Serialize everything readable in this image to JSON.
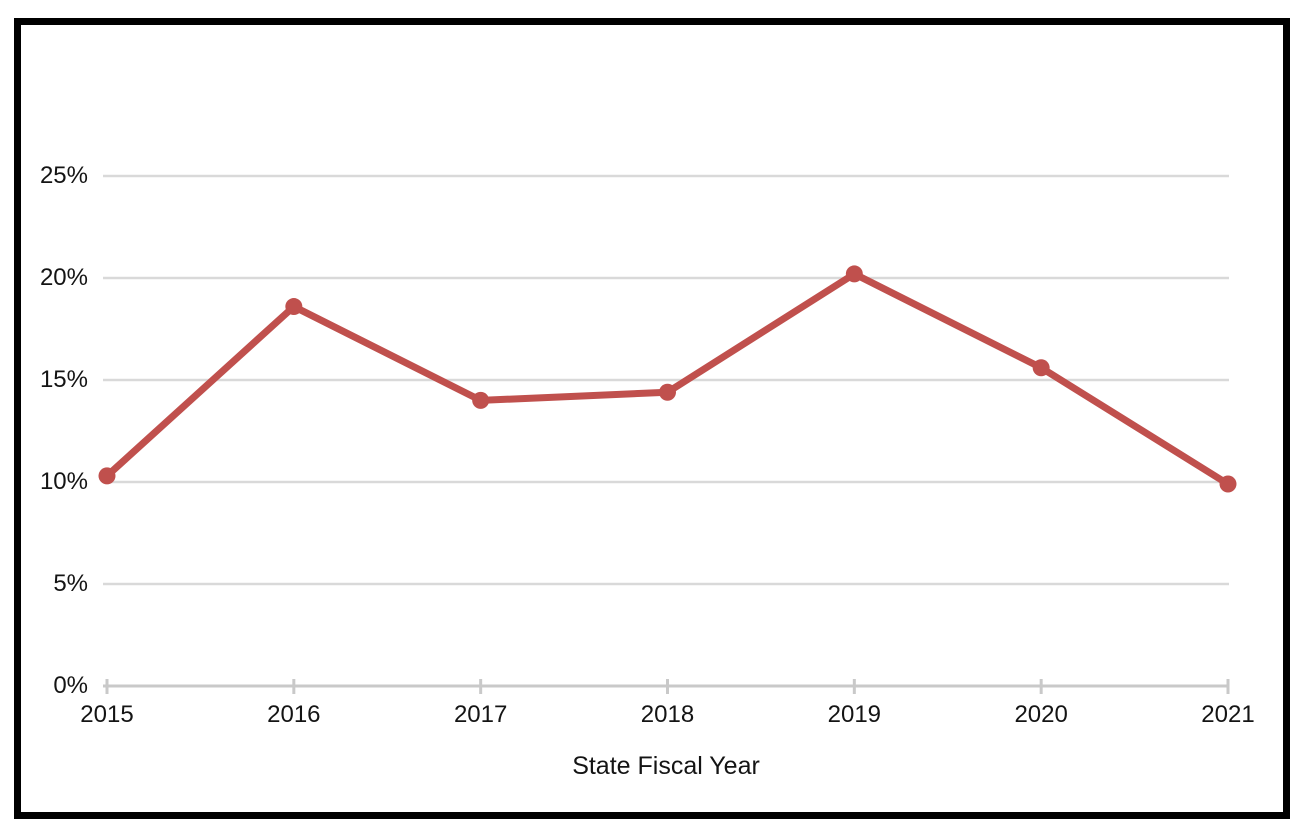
{
  "figure": {
    "background": "#FFFFFF",
    "border_color": "#000000"
  },
  "chart_data": {
    "type": "line",
    "title": "",
    "categories": [
      "2015",
      "2016",
      "2017",
      "2018",
      "2019",
      "2020",
      "2021"
    ],
    "series": [
      {
        "values": [
          10.3,
          18.6,
          14.0,
          14.4,
          20.2,
          15.6,
          9.9
        ],
        "color": "#C0504D"
      }
    ],
    "xlabel": "State Fiscal Year",
    "ylabel": "",
    "ylim": [
      0,
      25
    ],
    "ytick_step": 5,
    "ytick_labels": [
      "0%",
      "5%",
      "10%",
      "15%",
      "20%",
      "25%"
    ],
    "grid": true,
    "legend_position": "none",
    "colors": {
      "gridline": "#D9D9D9",
      "axis": "#C9C9C9",
      "tick": "#C9C9C9",
      "text": "#141414"
    }
  }
}
